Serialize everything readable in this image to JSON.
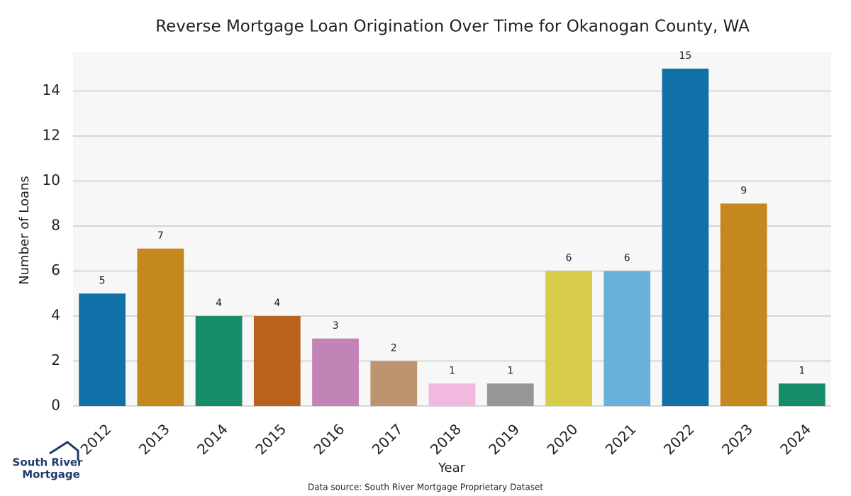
{
  "chart_data": {
    "type": "bar",
    "title": "Reverse Mortgage Loan Origination Over Time for Okanogan County, WA",
    "x_label": "Year",
    "y_label": "Number of Loans",
    "categories": [
      "2012",
      "2013",
      "2014",
      "2015",
      "2016",
      "2017",
      "2018",
      "2019",
      "2020",
      "2021",
      "2022",
      "2023",
      "2024"
    ],
    "values": [
      5,
      7,
      4,
      4,
      3,
      2,
      1,
      1,
      6,
      6,
      15,
      9,
      1
    ],
    "colors": [
      "#1270a8",
      "#c4881f",
      "#178c6b",
      "#b9621e",
      "#c283b6",
      "#bd9470",
      "#f1b8e0",
      "#969696",
      "#d6cc4a",
      "#67b0da",
      "#1270a8",
      "#c4881f",
      "#178c6b"
    ],
    "ylim": [
      0,
      15.75
    ],
    "yticks": [
      0,
      2,
      4,
      6,
      8,
      10,
      12,
      14
    ],
    "grid": true,
    "source": "Data source: South River Mortgage Proprietary Dataset"
  },
  "logo": {
    "line1": "South River",
    "line2": "Mortgage"
  }
}
